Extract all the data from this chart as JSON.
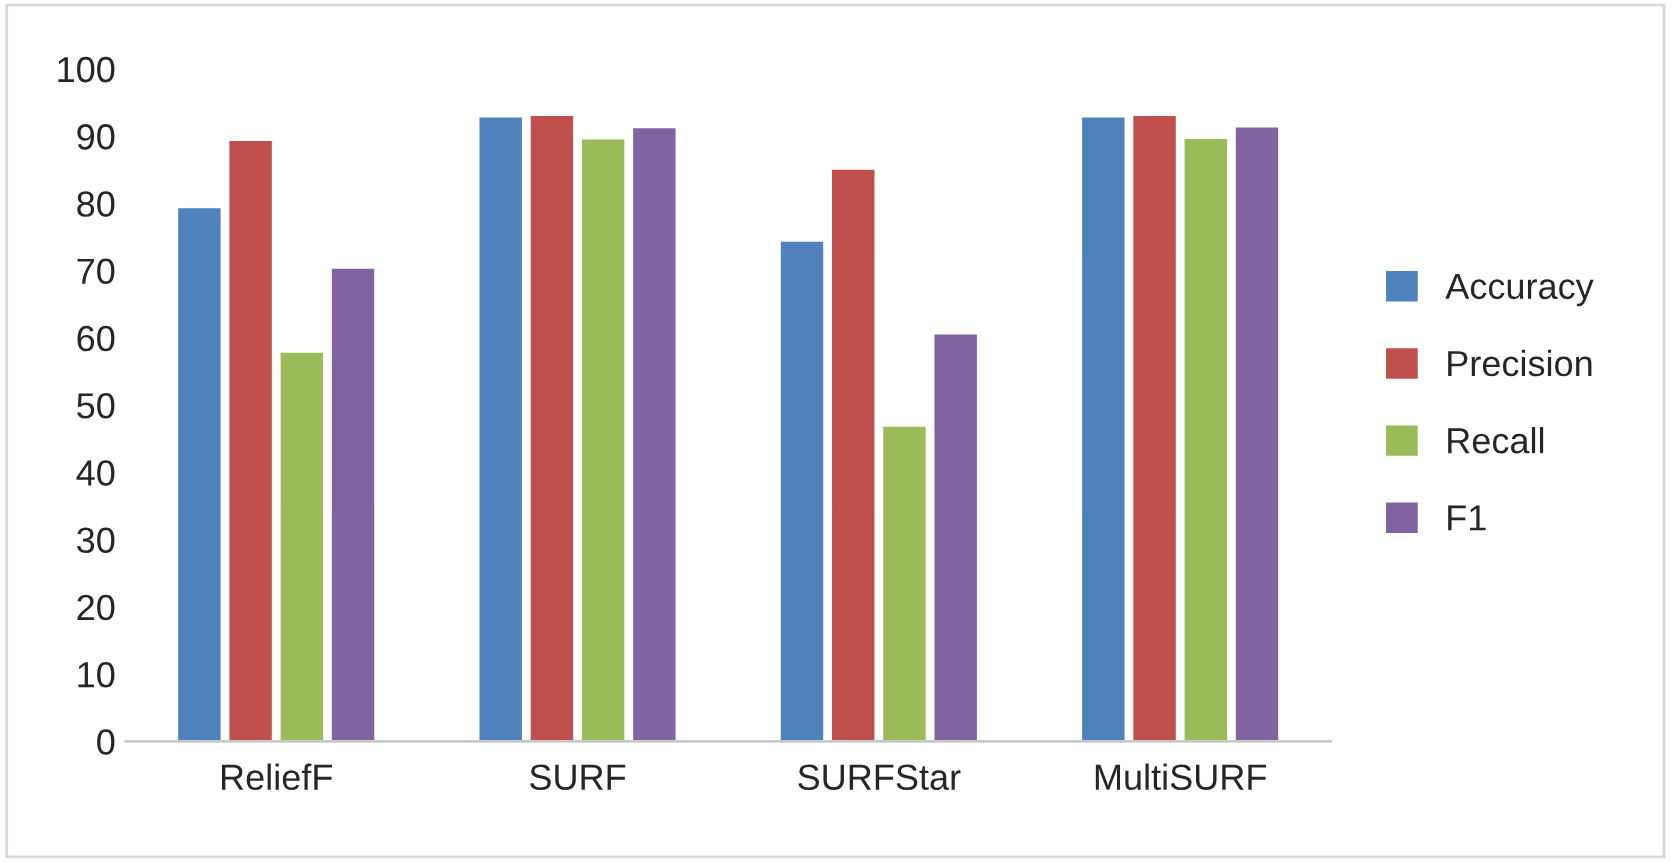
{
  "chart_data": {
    "type": "bar",
    "categories": [
      "ReliefF",
      "SURF",
      "SURFStar",
      "MultiSURF"
    ],
    "series": [
      {
        "name": "Accuracy",
        "color": "#4f81bd",
        "values": [
          79.5,
          93,
          74.5,
          93
        ]
      },
      {
        "name": "Precision",
        "color": "#c0504d",
        "values": [
          89.5,
          93.2,
          85.2,
          93.2
        ]
      },
      {
        "name": "Recall",
        "color": "#9bbb59",
        "values": [
          58,
          89.7,
          47,
          89.8
        ]
      },
      {
        "name": "F1",
        "color": "#8064a2",
        "values": [
          70.5,
          91.4,
          60.7,
          91.5
        ]
      }
    ],
    "ylim": [
      0,
      100
    ],
    "yticks": [
      0,
      10,
      20,
      30,
      40,
      50,
      60,
      70,
      80,
      90,
      100
    ],
    "grid": false,
    "legend": "right"
  }
}
